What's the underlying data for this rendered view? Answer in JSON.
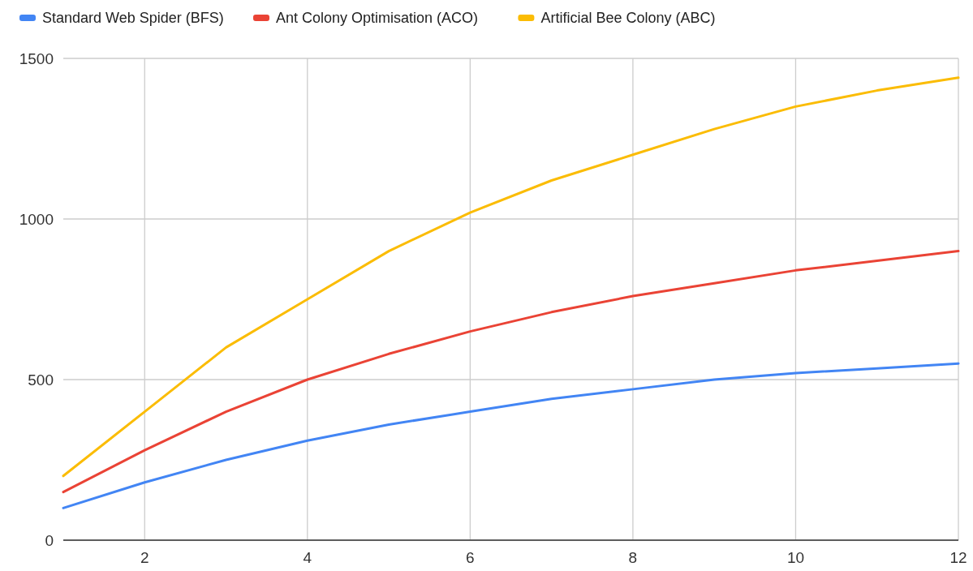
{
  "chart_data": {
    "type": "line",
    "x": [
      1,
      2,
      3,
      4,
      5,
      6,
      7,
      8,
      9,
      10,
      11,
      12
    ],
    "series": [
      {
        "name": "Standard Web Spider (BFS)",
        "color": "#4285f4",
        "values": [
          100,
          180,
          250,
          310,
          360,
          400,
          440,
          470,
          500,
          520,
          535,
          550
        ]
      },
      {
        "name": "Ant Colony Optimisation (ACO)",
        "color": "#ea4335",
        "values": [
          150,
          280,
          400,
          500,
          580,
          650,
          710,
          760,
          800,
          840,
          870,
          900
        ]
      },
      {
        "name": "Artificial Bee Colony (ABC)",
        "color": "#fbbc04",
        "values": [
          200,
          400,
          600,
          750,
          900,
          1020,
          1120,
          1200,
          1280,
          1350,
          1400,
          1440
        ]
      }
    ],
    "xlim": [
      1,
      12
    ],
    "xticks": [
      2,
      4,
      6,
      8,
      10,
      12
    ],
    "ylim": [
      0,
      1500
    ],
    "yticks": [
      0,
      500,
      1000,
      1500
    ],
    "grid": true,
    "legend": "top left",
    "marker": "none",
    "line_style": "solid"
  }
}
